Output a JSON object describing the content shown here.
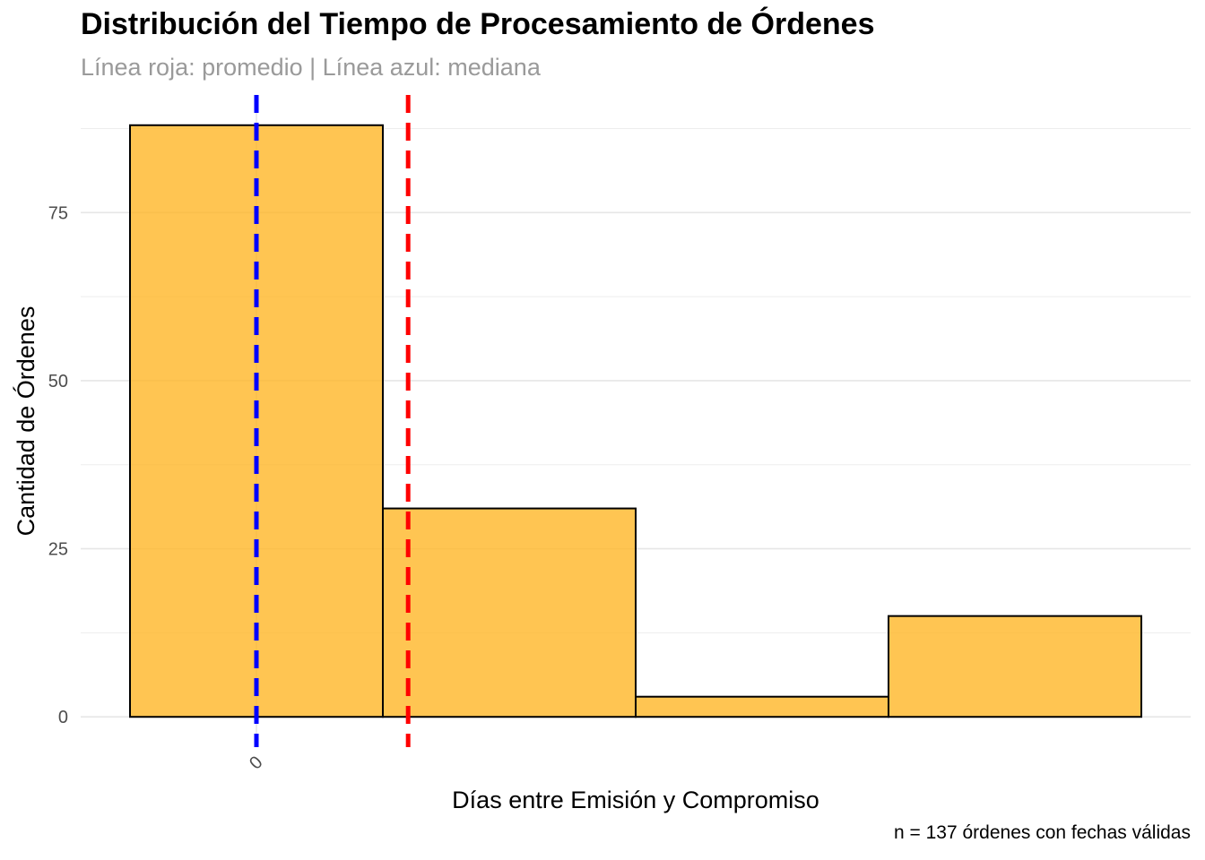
{
  "chart_data": {
    "type": "bar",
    "title": "Distribución del Tiempo de Procesamiento de Órdenes",
    "subtitle": "Línea roja: promedio | Línea azul: mediana",
    "caption": "n = 137 órdenes con fechas válidas",
    "xlabel": "Días entre Emisión y Compromiso",
    "ylabel": "Cantidad de Órdenes",
    "xlim": [
      -0.5,
      3.5
    ],
    "ylim": [
      -4.5,
      92.5
    ],
    "x_ticks": [
      {
        "value": 0,
        "label": "0"
      }
    ],
    "y_ticks": [
      {
        "value": 0,
        "label": "0"
      },
      {
        "value": 25,
        "label": "25"
      },
      {
        "value": 50,
        "label": "50"
      },
      {
        "value": 75,
        "label": "75"
      }
    ],
    "y_minor_grid": [
      12.5,
      37.5,
      62.5,
      87.5
    ],
    "grid": true,
    "bins": [
      {
        "start": -0.5,
        "end": 0.5,
        "count": 88
      },
      {
        "start": 0.5,
        "end": 1.5,
        "count": 31
      },
      {
        "start": 1.5,
        "end": 2.5,
        "count": 3
      },
      {
        "start": 2.5,
        "end": 3.5,
        "count": 15
      }
    ],
    "reference_lines": [
      {
        "stat": "mediana",
        "x": 0.0,
        "color": "#0000FF"
      },
      {
        "stat": "promedio",
        "x": 0.6,
        "color": "#FF0000"
      }
    ],
    "bar_fill": "#FFB627",
    "bar_stroke": "#000000"
  }
}
